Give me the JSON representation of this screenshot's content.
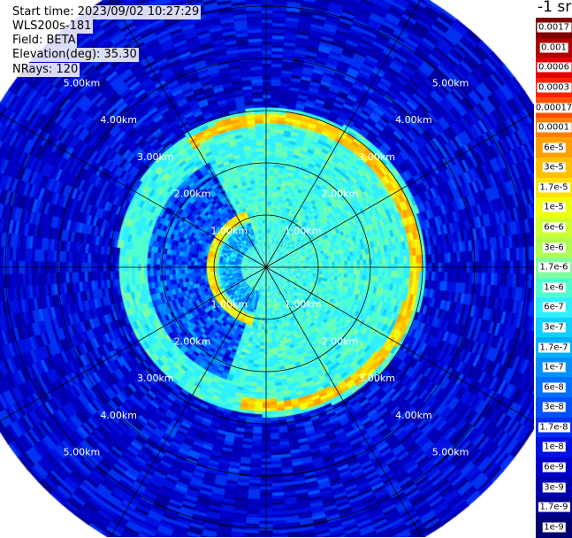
{
  "header": {
    "start_time": "Start time: 2023/09/02 10:27:29",
    "device": "WLS200s-181",
    "field": "Field: BETA",
    "elevation": "Elevation(deg): 35.30",
    "nrays": "NRays: 120"
  },
  "colorbar": {
    "unit": "-1 sr",
    "labels": [
      "0.0017",
      "0.001",
      "0.0006",
      "0.0003",
      "0.00017",
      "0.0001",
      "6e-5",
      "3e-5",
      "1.7e-5",
      "1e-5",
      "6e-6",
      "3e-6",
      "1.7e-6",
      "1e-6",
      "6e-7",
      "3e-7",
      "1.7e-7",
      "1e-7",
      "6e-8",
      "3e-8",
      "1.7e-8",
      "1e-8",
      "6e-9",
      "3e-9",
      "1.7e-9",
      "1e-9"
    ],
    "colors": [
      "#7f0000",
      "#b00000",
      "#e00000",
      "#ff2000",
      "#ff5000",
      "#ff8000",
      "#ffa000",
      "#ffc000",
      "#ffe000",
      "#f0ff10",
      "#d0ff30",
      "#b0ff50",
      "#80ffa0",
      "#50ffd0",
      "#30f0ff",
      "#10d0ff",
      "#00b0ff",
      "#0090ff",
      "#0070ff",
      "#0050ff",
      "#0030f0",
      "#0010e0",
      "#0000c8",
      "#0000b0",
      "#000090",
      "#000070"
    ]
  },
  "range_rings": {
    "labels": [
      "1.00km",
      "2.00km",
      "3.00km",
      "4.00km",
      "5.00km"
    ]
  },
  "chart_data": {
    "type": "heatmap",
    "projection": "polar-ppi",
    "n_rays": 120,
    "range_km": [
      0,
      6
    ],
    "ring_ranges_km": [
      1,
      2,
      3,
      4,
      5
    ],
    "azimuth_grid_deg": [
      0,
      30,
      60,
      90,
      120,
      150,
      180,
      210,
      240,
      270,
      300,
      330
    ],
    "color_scale": "log",
    "value_range": [
      1e-09,
      0.0017
    ],
    "regions": [
      {
        "description": "outer clear-air field",
        "range_km": [
          3.1,
          6
        ],
        "beta_typical": 1e-08
      },
      {
        "description": "inner aerosol layer",
        "range_km": [
          0,
          2.9
        ],
        "beta_typical": 1e-06
      },
      {
        "description": "strong backscatter ring (east half)",
        "range_km": [
          2.5,
          2.9
        ],
        "azimuth_deg": [
          330,
          190
        ],
        "beta_peak": 0.0001
      },
      {
        "description": "strong backscatter arc (inner, west)",
        "range_km": [
          0.9,
          1.15
        ],
        "azimuth_deg": [
          195,
          340
        ],
        "beta_peak": 6e-05
      }
    ]
  }
}
